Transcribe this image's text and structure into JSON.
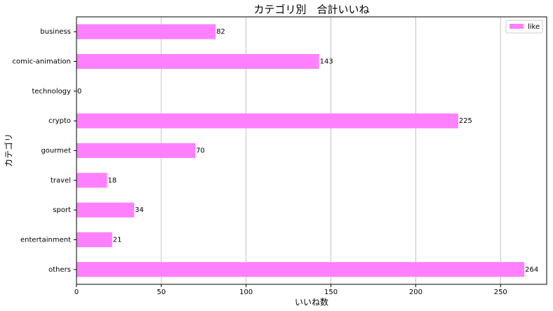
{
  "chart_data": {
    "type": "barh",
    "title": "カテゴリ別　合計いいね",
    "x_label": "いいね数",
    "y_label": "カテゴリ",
    "categories": [
      "business",
      "comic-animation",
      "technology",
      "crypto",
      "gourmet",
      "travel",
      "sport",
      "entertainment",
      "others"
    ],
    "series": [
      {
        "name": "like",
        "color": "#ff80ff",
        "values": [
          82,
          143,
          0,
          225,
          70,
          18,
          34,
          21,
          264
        ]
      }
    ],
    "xlim": [
      0,
      277.2
    ],
    "xticks": [
      0,
      50,
      100,
      150,
      200,
      250
    ],
    "grid": true,
    "legend": "upper right"
  }
}
